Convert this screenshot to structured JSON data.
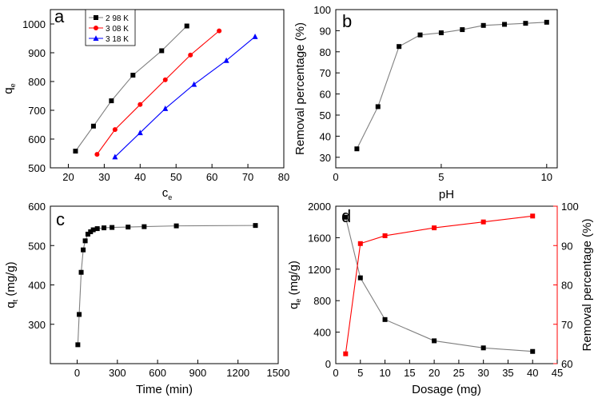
{
  "figure": {
    "description_labels": [
      "a",
      "b",
      "c",
      "d"
    ]
  },
  "chart_data": [
    {
      "panel": "a",
      "type": "line",
      "xlabel": "c",
      "xlabel_sub": "e",
      "ylabel": "q",
      "ylabel_sub": "e",
      "xlim": [
        15,
        80
      ],
      "ylim": [
        500,
        1050
      ],
      "xticks": [
        20,
        30,
        40,
        50,
        60,
        70,
        80
      ],
      "yticks": [
        500,
        600,
        700,
        800,
        900,
        1000
      ],
      "legend_position": "top-left",
      "series": [
        {
          "name": "2 98 K",
          "color": "#000000",
          "marker": "square",
          "x": [
            22,
            27,
            32,
            38,
            46,
            53
          ],
          "y": [
            558,
            645,
            733,
            822,
            907,
            993
          ]
        },
        {
          "name": "3 08 K",
          "color": "#ff0000",
          "marker": "circle",
          "x": [
            28,
            33,
            40,
            47,
            54,
            62
          ],
          "y": [
            547,
            633,
            720,
            806,
            892,
            976
          ]
        },
        {
          "name": "3 18 K",
          "color": "#0000ff",
          "marker": "triangle",
          "x": [
            33,
            40,
            47,
            55,
            64,
            72
          ],
          "y": [
            538,
            622,
            706,
            790,
            873,
            956
          ]
        }
      ]
    },
    {
      "panel": "b",
      "type": "line",
      "xlabel": "pH",
      "ylabel": "Removal percentage (%)",
      "xlim": [
        0,
        10.5
      ],
      "ylim": [
        25,
        100
      ],
      "xticks": [
        0,
        5,
        10
      ],
      "yticks": [
        30,
        40,
        50,
        60,
        70,
        80,
        90,
        100
      ],
      "series": [
        {
          "name": "removal",
          "color": "#000000",
          "marker": "square",
          "x": [
            1,
            2,
            3,
            4,
            5,
            6,
            7,
            8,
            9,
            10
          ],
          "y": [
            34,
            54,
            82.5,
            88,
            89,
            90.5,
            92.5,
            93,
            93.5,
            94
          ]
        }
      ]
    },
    {
      "panel": "c",
      "type": "line",
      "xlabel": "Time (min)",
      "ylabel": "q",
      "ylabel_sub": "t",
      "ylabel_suffix": " (mg/g)",
      "xlim": [
        -200,
        1500
      ],
      "ylim": [
        200,
        600
      ],
      "xticks": [
        0,
        300,
        600,
        900,
        1200,
        1500
      ],
      "yticks": [
        300,
        400,
        500,
        600
      ],
      "series": [
        {
          "name": "qt",
          "color": "#000000",
          "marker": "square",
          "x": [
            5,
            15,
            30,
            45,
            60,
            80,
            100,
            120,
            150,
            200,
            260,
            380,
            500,
            740,
            1330
          ],
          "y": [
            248,
            325,
            432,
            489,
            512,
            529,
            535,
            540,
            543,
            545,
            546,
            547,
            548,
            550,
            551
          ]
        }
      ]
    },
    {
      "panel": "d",
      "type": "line",
      "xlabel": "Dosage (mg)",
      "ylabel": "q",
      "ylabel_sub": "e",
      "ylabel_suffix": " (mg/g)",
      "ylabel_right": "Removal percentage (%)",
      "xlim": [
        0,
        45
      ],
      "ylim_left": [
        0,
        2000
      ],
      "ylim_right": [
        60,
        100
      ],
      "xticks": [
        0,
        5,
        10,
        15,
        20,
        25,
        30,
        35,
        40,
        45
      ],
      "yticks_left": [
        0,
        400,
        800,
        1200,
        1600,
        2000
      ],
      "yticks_right": [
        60,
        70,
        80,
        90,
        100
      ],
      "series": [
        {
          "name": "qe",
          "axis": "left",
          "color": "#000000",
          "marker": "square",
          "x": [
            2,
            5,
            10,
            20,
            30,
            40
          ],
          "y": [
            1860,
            1090,
            560,
            290,
            200,
            155
          ]
        },
        {
          "name": "removal",
          "axis": "right",
          "color": "#ff0000",
          "marker": "square",
          "x": [
            2,
            5,
            10,
            20,
            30,
            40
          ],
          "y": [
            62.5,
            90.5,
            92.5,
            94.5,
            96,
            97.5
          ]
        }
      ]
    }
  ]
}
